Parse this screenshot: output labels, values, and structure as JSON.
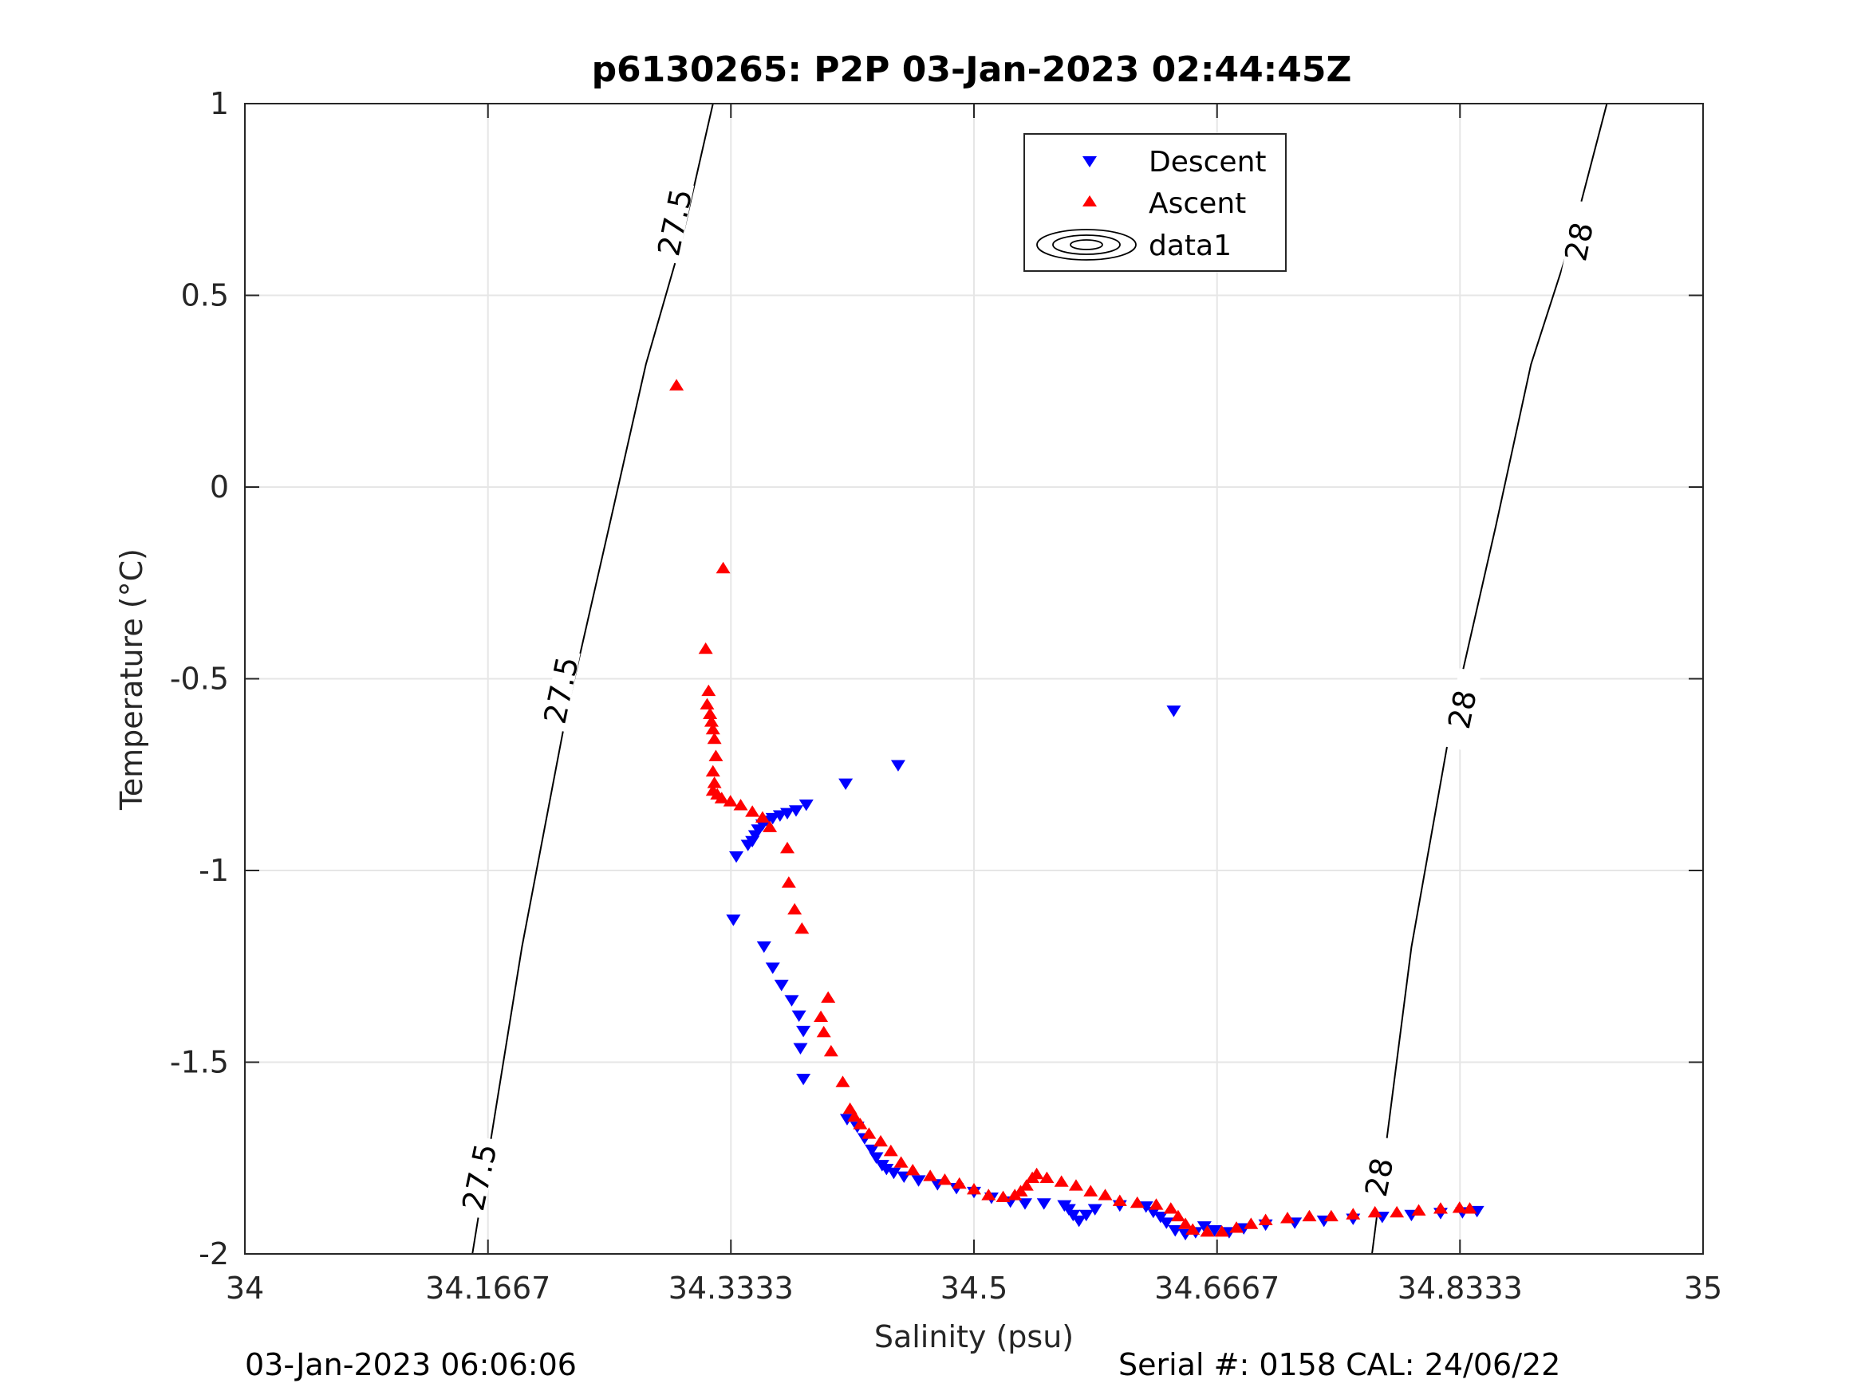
{
  "chart_data": {
    "type": "scatter",
    "title": "p6130265: P2P 03-Jan-2023 02:44:45Z",
    "xlabel": "Salinity (psu)",
    "ylabel": "Temperature (°C)",
    "xlim": [
      34.0,
      35.0
    ],
    "ylim": [
      -2.0,
      1.0
    ],
    "x_ticks": [
      {
        "value": 34.0,
        "label": "34"
      },
      {
        "value": 34.1667,
        "label": "34.1667"
      },
      {
        "value": 34.3333,
        "label": "34.3333"
      },
      {
        "value": 34.5,
        "label": "34.5"
      },
      {
        "value": 34.6667,
        "label": "34.6667"
      },
      {
        "value": 34.8333,
        "label": "34.8333"
      },
      {
        "value": 35.0,
        "label": "35"
      }
    ],
    "y_ticks": [
      {
        "value": 1.0,
        "label": "1"
      },
      {
        "value": 0.5,
        "label": "0.5"
      },
      {
        "value": 0.0,
        "label": "0"
      },
      {
        "value": -0.5,
        "label": "-0.5"
      },
      {
        "value": -1.0,
        "label": "-1"
      },
      {
        "value": -1.5,
        "label": "-1.5"
      },
      {
        "value": -2.0,
        "label": "-2"
      }
    ],
    "grid": true,
    "legend_position": "top-center",
    "series": [
      {
        "name": "Descent",
        "marker": "triangle-down",
        "color": "#0000ff",
        "points": [
          [
            34.637,
            -0.585
          ],
          [
            34.448,
            -0.727
          ],
          [
            34.412,
            -0.775
          ],
          [
            34.385,
            -0.83
          ],
          [
            34.378,
            -0.845
          ],
          [
            34.372,
            -0.852
          ],
          [
            34.367,
            -0.858
          ],
          [
            34.362,
            -0.865
          ],
          [
            34.358,
            -0.872
          ],
          [
            34.355,
            -0.882
          ],
          [
            34.352,
            -0.895
          ],
          [
            34.35,
            -0.91
          ],
          [
            34.348,
            -0.925
          ],
          [
            34.345,
            -0.935
          ],
          [
            34.337,
            -0.965
          ],
          [
            34.335,
            -1.13
          ],
          [
            34.356,
            -1.2
          ],
          [
            34.362,
            -1.255
          ],
          [
            34.368,
            -1.3
          ],
          [
            34.375,
            -1.34
          ],
          [
            34.38,
            -1.38
          ],
          [
            34.383,
            -1.42
          ],
          [
            34.381,
            -1.465
          ],
          [
            34.383,
            -1.545
          ],
          [
            34.413,
            -1.65
          ],
          [
            34.42,
            -1.67
          ],
          [
            34.425,
            -1.7
          ],
          [
            34.43,
            -1.73
          ],
          [
            34.433,
            -1.75
          ],
          [
            34.437,
            -1.77
          ],
          [
            34.44,
            -1.78
          ],
          [
            34.445,
            -1.79
          ],
          [
            34.452,
            -1.8
          ],
          [
            34.462,
            -1.81
          ],
          [
            34.475,
            -1.82
          ],
          [
            34.488,
            -1.83
          ],
          [
            34.5,
            -1.84
          ],
          [
            34.512,
            -1.855
          ],
          [
            34.525,
            -1.865
          ],
          [
            34.535,
            -1.87
          ],
          [
            34.548,
            -1.87
          ],
          [
            34.562,
            -1.875
          ],
          [
            34.565,
            -1.885
          ],
          [
            34.568,
            -1.9
          ],
          [
            34.572,
            -1.915
          ],
          [
            34.577,
            -1.9
          ],
          [
            34.583,
            -1.885
          ],
          [
            34.6,
            -1.875
          ],
          [
            34.618,
            -1.878
          ],
          [
            34.623,
            -1.892
          ],
          [
            34.628,
            -1.905
          ],
          [
            34.632,
            -1.92
          ],
          [
            34.638,
            -1.94
          ],
          [
            34.645,
            -1.95
          ],
          [
            34.652,
            -1.945
          ],
          [
            34.658,
            -1.93
          ],
          [
            34.665,
            -1.94
          ],
          [
            34.675,
            -1.945
          ],
          [
            34.685,
            -1.935
          ],
          [
            34.7,
            -1.925
          ],
          [
            34.72,
            -1.92
          ],
          [
            34.74,
            -1.915
          ],
          [
            34.76,
            -1.91
          ],
          [
            34.78,
            -1.905
          ],
          [
            34.8,
            -1.9
          ],
          [
            34.82,
            -1.895
          ],
          [
            34.835,
            -1.893
          ],
          [
            34.845,
            -1.89
          ]
        ]
      },
      {
        "name": "Ascent",
        "marker": "triangle-up",
        "color": "#ff0000",
        "points": [
          [
            34.296,
            0.267
          ],
          [
            34.328,
            -0.21
          ],
          [
            34.316,
            -0.42
          ],
          [
            34.318,
            -0.53
          ],
          [
            34.317,
            -0.565
          ],
          [
            34.319,
            -0.59
          ],
          [
            34.32,
            -0.61
          ],
          [
            34.321,
            -0.63
          ],
          [
            34.322,
            -0.655
          ],
          [
            34.323,
            -0.7
          ],
          [
            34.321,
            -0.74
          ],
          [
            34.322,
            -0.77
          ],
          [
            34.321,
            -0.79
          ],
          [
            34.324,
            -0.8
          ],
          [
            34.327,
            -0.81
          ],
          [
            34.333,
            -0.818
          ],
          [
            34.34,
            -0.828
          ],
          [
            34.348,
            -0.845
          ],
          [
            34.355,
            -0.86
          ],
          [
            34.36,
            -0.885
          ],
          [
            34.372,
            -0.94
          ],
          [
            34.373,
            -1.03
          ],
          [
            34.377,
            -1.1
          ],
          [
            34.382,
            -1.15
          ],
          [
            34.4,
            -1.33
          ],
          [
            34.395,
            -1.38
          ],
          [
            34.397,
            -1.42
          ],
          [
            34.402,
            -1.47
          ],
          [
            34.41,
            -1.55
          ],
          [
            34.415,
            -1.62
          ],
          [
            34.418,
            -1.64
          ],
          [
            34.422,
            -1.66
          ],
          [
            34.428,
            -1.685
          ],
          [
            34.436,
            -1.705
          ],
          [
            34.443,
            -1.73
          ],
          [
            34.45,
            -1.76
          ],
          [
            34.458,
            -1.78
          ],
          [
            34.47,
            -1.795
          ],
          [
            34.48,
            -1.805
          ],
          [
            34.49,
            -1.815
          ],
          [
            34.5,
            -1.83
          ],
          [
            34.51,
            -1.845
          ],
          [
            34.52,
            -1.85
          ],
          [
            34.528,
            -1.845
          ],
          [
            34.532,
            -1.835
          ],
          [
            34.536,
            -1.82
          ],
          [
            34.54,
            -1.8
          ],
          [
            34.543,
            -1.79
          ],
          [
            34.55,
            -1.8
          ],
          [
            34.56,
            -1.81
          ],
          [
            34.57,
            -1.82
          ],
          [
            34.58,
            -1.835
          ],
          [
            34.59,
            -1.845
          ],
          [
            34.6,
            -1.86
          ],
          [
            34.612,
            -1.865
          ],
          [
            34.625,
            -1.87
          ],
          [
            34.635,
            -1.88
          ],
          [
            34.64,
            -1.9
          ],
          [
            34.645,
            -1.92
          ],
          [
            34.65,
            -1.935
          ],
          [
            34.66,
            -1.94
          ],
          [
            34.67,
            -1.94
          ],
          [
            34.68,
            -1.93
          ],
          [
            34.69,
            -1.92
          ],
          [
            34.7,
            -1.91
          ],
          [
            34.715,
            -1.905
          ],
          [
            34.73,
            -1.9
          ],
          [
            34.745,
            -1.9
          ],
          [
            34.76,
            -1.895
          ],
          [
            34.775,
            -1.89
          ],
          [
            34.79,
            -1.89
          ],
          [
            34.805,
            -1.885
          ],
          [
            34.82,
            -1.88
          ],
          [
            34.833,
            -1.878
          ],
          [
            34.84,
            -1.88
          ]
        ]
      },
      {
        "name": "data1",
        "type": "contour",
        "color": "#000000",
        "lines": [
          {
            "level_label": "27.5",
            "points": [
              [
                34.156,
                -2.0
              ],
              [
                34.19,
                -1.2
              ],
              [
                34.22,
                -0.6
              ],
              [
                34.25,
                -0.1
              ],
              [
                34.275,
                0.32
              ],
              [
                34.3,
                0.65
              ],
              [
                34.321,
                1.0
              ]
            ]
          },
          {
            "level_label": "28",
            "points": [
              [
                34.773,
                -2.0
              ],
              [
                34.8,
                -1.2
              ],
              [
                34.828,
                -0.6
              ],
              [
                34.858,
                -0.1
              ],
              [
                34.882,
                0.32
              ],
              [
                34.91,
                0.65
              ],
              [
                34.934,
                1.0
              ]
            ]
          }
        ],
        "labels": [
          {
            "text": "27.5",
            "x": 34.161,
            "y": -1.8
          },
          {
            "text": "27.5",
            "x": 34.217,
            "y": -0.53
          },
          {
            "text": "27.5",
            "x": 34.295,
            "y": 0.69
          },
          {
            "text": "28",
            "x": 34.778,
            "y": -1.8
          },
          {
            "text": "28",
            "x": 34.835,
            "y": -0.58
          },
          {
            "text": "28",
            "x": 34.915,
            "y": 0.64
          }
        ]
      }
    ]
  },
  "footer": {
    "left": "03-Jan-2023 06:06:06",
    "right": "Serial #: 0158  CAL: 24/06/22"
  }
}
